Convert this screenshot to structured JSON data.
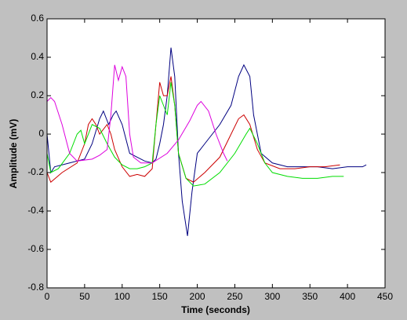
{
  "chart_data": {
    "type": "line",
    "xlabel": "Time (seconds)",
    "ylabel": "Amplitude (mV)",
    "xlim": [
      0,
      450
    ],
    "ylim": [
      -0.8,
      0.6
    ],
    "xticks": [
      0,
      50,
      100,
      150,
      200,
      250,
      300,
      350,
      400,
      450
    ],
    "yticks": [
      -0.8,
      -0.6,
      -0.4,
      -0.2,
      0,
      0.2,
      0.4,
      0.6
    ],
    "grid": false,
    "series": [
      {
        "color": "#000080",
        "x": [
          0,
          5,
          10,
          30,
          50,
          60,
          70,
          75,
          82,
          88,
          92,
          100,
          110,
          120,
          130,
          140,
          145,
          150,
          155,
          160,
          165,
          170,
          175,
          180,
          187,
          193,
          200,
          210,
          220,
          230,
          245,
          255,
          262,
          270,
          275,
          285,
          300,
          320,
          340,
          360,
          380,
          400,
          420,
          425
        ],
        "values": [
          0,
          -0.2,
          -0.17,
          -0.15,
          -0.13,
          -0.05,
          0.08,
          0.12,
          0.05,
          0.1,
          0.12,
          0.05,
          -0.1,
          -0.12,
          -0.14,
          -0.15,
          -0.13,
          -0.05,
          0.05,
          0.2,
          0.45,
          0.3,
          -0.1,
          -0.35,
          -0.53,
          -0.3,
          -0.1,
          -0.05,
          0,
          0.05,
          0.15,
          0.3,
          0.36,
          0.3,
          0.1,
          -0.1,
          -0.15,
          -0.17,
          -0.17,
          -0.17,
          -0.18,
          -0.17,
          -0.17,
          -0.16
        ]
      },
      {
        "color": "#cc0000",
        "x": [
          0,
          5,
          20,
          40,
          50,
          55,
          60,
          65,
          70,
          80,
          85,
          90,
          100,
          110,
          120,
          130,
          140,
          145,
          150,
          155,
          160,
          165,
          170,
          175,
          185,
          195,
          210,
          230,
          245,
          255,
          262,
          270,
          280,
          290,
          310,
          330,
          350,
          370,
          390
        ],
        "values": [
          -0.2,
          -0.25,
          -0.2,
          -0.15,
          -0.05,
          0.05,
          0.08,
          0.05,
          0,
          0.05,
          0,
          -0.08,
          -0.17,
          -0.22,
          -0.21,
          -0.22,
          -0.18,
          0.05,
          0.27,
          0.2,
          0.2,
          0.3,
          0.15,
          -0.1,
          -0.23,
          -0.25,
          -0.2,
          -0.12,
          0,
          0.08,
          0.1,
          0.05,
          -0.08,
          -0.15,
          -0.18,
          -0.18,
          -0.17,
          -0.17,
          -0.16
        ]
      },
      {
        "color": "#00dd00",
        "x": [
          0,
          5,
          15,
          30,
          40,
          45,
          50,
          60,
          70,
          80,
          90,
          100,
          110,
          120,
          130,
          140,
          145,
          150,
          155,
          160,
          165,
          170,
          175,
          185,
          195,
          210,
          230,
          250,
          265,
          270,
          280,
          290,
          300,
          320,
          340,
          360,
          380,
          395
        ],
        "values": [
          -0.1,
          -0.2,
          -0.18,
          -0.1,
          0,
          0.02,
          -0.05,
          0.05,
          0.03,
          -0.05,
          -0.12,
          -0.16,
          -0.18,
          -0.18,
          -0.17,
          -0.15,
          0.05,
          0.2,
          0.15,
          0.1,
          0.27,
          0.15,
          -0.1,
          -0.23,
          -0.27,
          -0.26,
          -0.2,
          -0.1,
          0,
          0.03,
          -0.05,
          -0.15,
          -0.2,
          -0.22,
          -0.23,
          -0.23,
          -0.22,
          -0.22
        ]
      },
      {
        "color": "#dd00dd",
        "x": [
          0,
          5,
          10,
          20,
          30,
          40,
          60,
          70,
          80,
          85,
          90,
          95,
          100,
          105,
          110,
          115,
          125,
          140,
          160,
          175,
          190,
          200,
          205,
          215,
          225,
          235,
          240
        ],
        "values": [
          0.17,
          0.19,
          0.17,
          0.05,
          -0.1,
          -0.14,
          -0.13,
          -0.11,
          -0.08,
          0.1,
          0.36,
          0.28,
          0.35,
          0.3,
          0,
          -0.12,
          -0.15,
          -0.15,
          -0.1,
          -0.03,
          0.07,
          0.15,
          0.17,
          0.12,
          0,
          -0.1,
          -0.14
        ]
      }
    ]
  }
}
